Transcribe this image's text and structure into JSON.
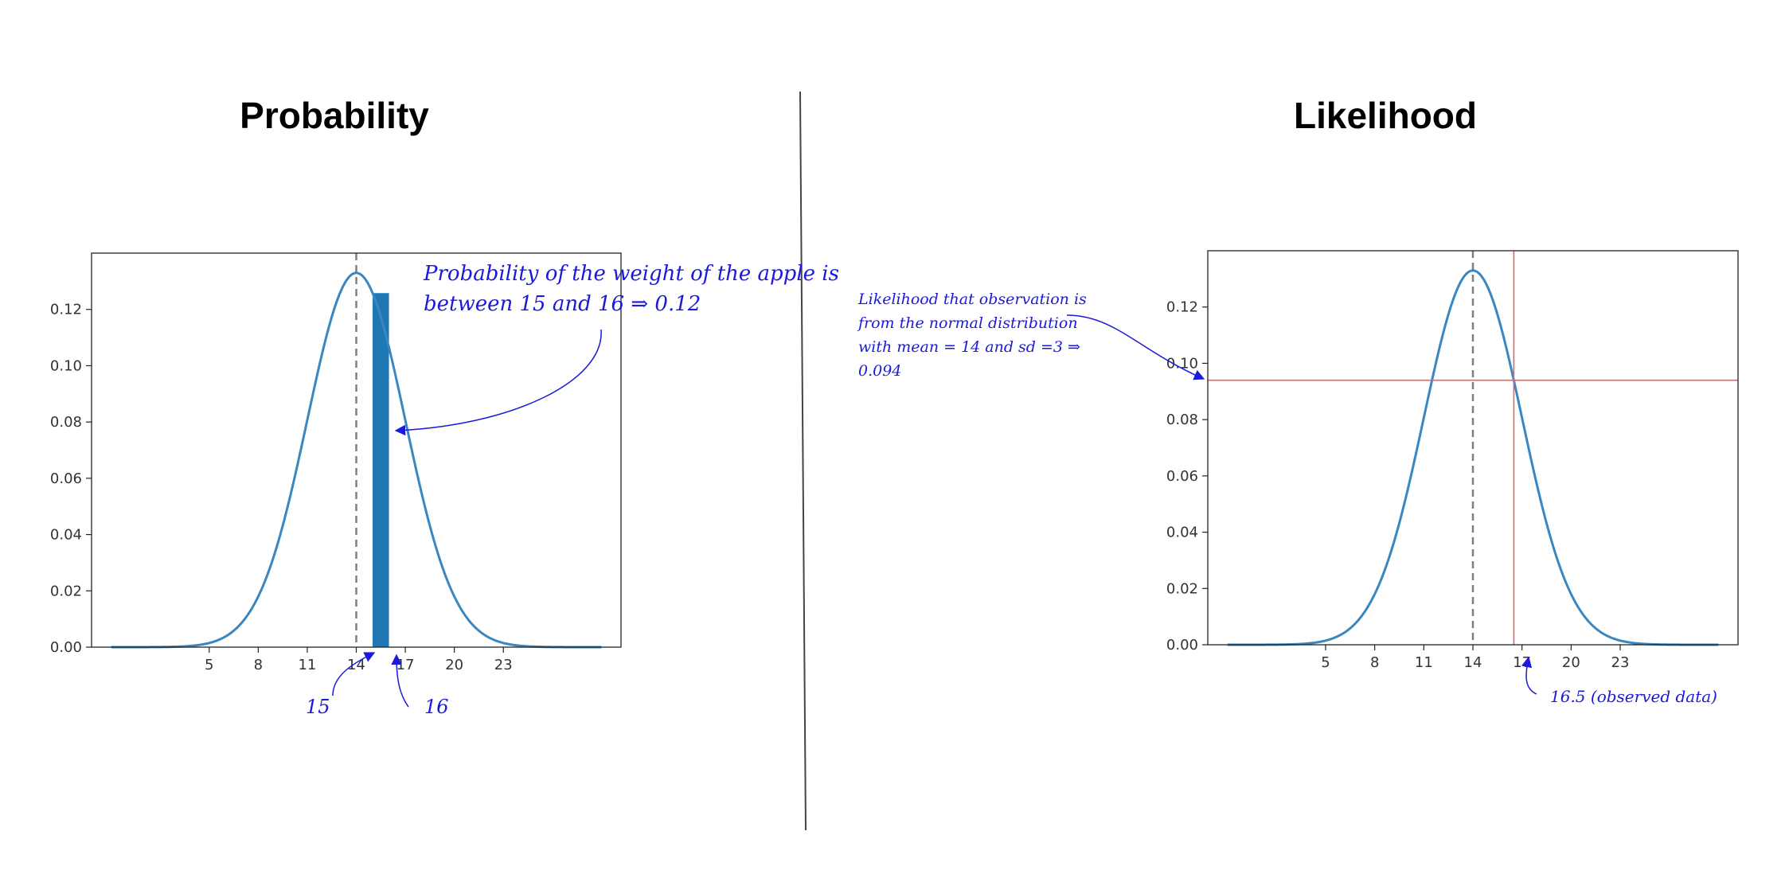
{
  "page": {
    "left_title": "Probability",
    "right_title": "Likelihood"
  },
  "annotations": {
    "left_note_line1": "Probability of the weight of the apple is",
    "left_note_line2": "between 15 and 16 ⇒ 0.12",
    "left_label_15": "15",
    "left_label_16": "16",
    "right_note_line1": "Likelihood that observation is",
    "right_note_line2": "from the normal distribution",
    "right_note_line3": "with mean = 14 and sd =3 ⇒",
    "right_note_line4": "0.094",
    "right_observed": "16.5 (observed data)"
  },
  "colors": {
    "curve": "#3a87c0",
    "shade": "#1f77b4",
    "mean_line": "#7f7f7f",
    "observed_line": "#e06666",
    "annotation": "#1a1adb",
    "divider": "#444444"
  },
  "chart_data": [
    {
      "type": "line",
      "title": "Probability",
      "series": [
        {
          "distribution": "normal",
          "mean": 14,
          "sd": 3
        }
      ],
      "x_range": [
        -1,
        29
      ],
      "xlim": [
        -2.2,
        30.2
      ],
      "ylim": [
        0,
        0.14
      ],
      "x_ticks": [
        5,
        8,
        11,
        14,
        17,
        20,
        23
      ],
      "y_ticks": [
        0.0,
        0.02,
        0.04,
        0.06,
        0.08,
        0.1,
        0.12
      ],
      "y_tick_labels": [
        "0.00",
        "0.02",
        "0.04",
        "0.06",
        "0.08",
        "0.10",
        "0.12"
      ],
      "mean_line_x": 14,
      "shaded_interval": [
        15,
        16
      ],
      "shaded_probability": 0.12,
      "grid": false
    },
    {
      "type": "line",
      "title": "Likelihood",
      "series": [
        {
          "distribution": "normal",
          "mean": 14,
          "sd": 3
        }
      ],
      "x_range": [
        -1,
        29
      ],
      "xlim": [
        -2.2,
        30.2
      ],
      "ylim": [
        0,
        0.14
      ],
      "x_ticks": [
        5,
        8,
        11,
        14,
        17,
        20,
        23
      ],
      "y_ticks": [
        0.0,
        0.02,
        0.04,
        0.06,
        0.08,
        0.1,
        0.12
      ],
      "y_tick_labels": [
        "0.00",
        "0.02",
        "0.04",
        "0.06",
        "0.08",
        "0.10",
        "0.12"
      ],
      "mean_line_x": 14,
      "observed_x": 16.5,
      "likelihood_value": 0.094,
      "grid": false
    }
  ]
}
